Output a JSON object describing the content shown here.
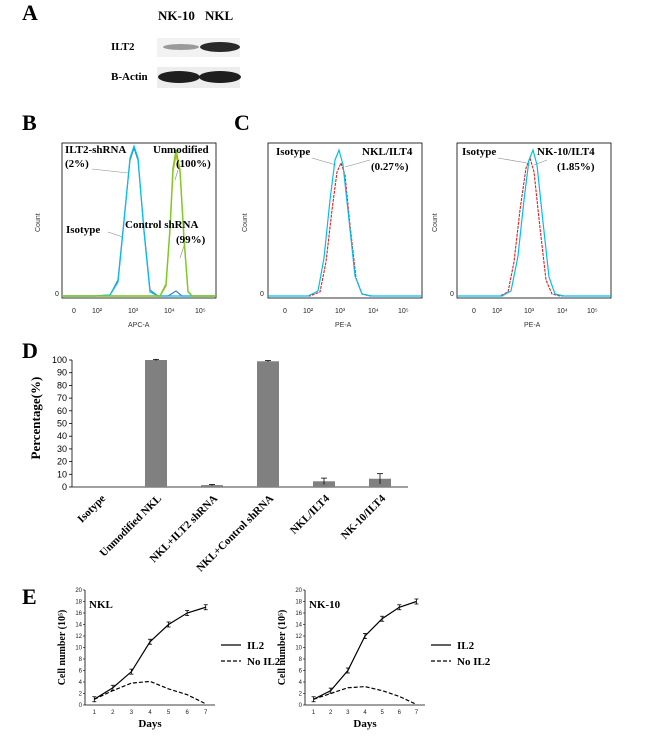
{
  "panel_a": {
    "letter": "A",
    "cols": [
      "NK-10",
      "NKL"
    ],
    "rows": [
      "ILT2",
      "B-Actin"
    ]
  },
  "panel_b": {
    "letter": "B",
    "xlabel": "APC-A",
    "ylabel": "Count",
    "annotations": {
      "shrna": "ILT2-shRNA",
      "shrna_pct": "(2%)",
      "unmod": "Unmodified",
      "unmod_pct": "(100%)",
      "isotype": "Isotype",
      "control": "Control shRNA",
      "control_pct": "(99%)"
    },
    "ticks": [
      "0",
      "10²",
      "10³",
      "10⁴",
      "10⁵"
    ],
    "zero": "0"
  },
  "panel_c": {
    "letter": "C",
    "left": {
      "xlabel": "PE-A",
      "ylabel": "Count",
      "isotype": "Isotype",
      "label": "NKL/ILT4",
      "pct": "(0.27%)"
    },
    "right": {
      "xlabel": "PE-A",
      "ylabel": "Count",
      "isotype": "Isotype",
      "label": "NK-10/ILT4",
      "pct": "(1.85%)"
    },
    "ticks": [
      "0",
      "10²",
      "10³",
      "10⁴",
      "10⁵"
    ],
    "zero": "0"
  },
  "chart_data": [
    {
      "type": "bar",
      "panel": "D",
      "ylabel": "Percentage(%)",
      "categories": [
        "Isotype",
        "Unmodified NKL",
        "NKL+ILT2 shRNA",
        "NKL+Control shRNA",
        "NKL/ILT4",
        "NK-10/ILT4"
      ],
      "values": [
        0,
        100,
        1.5,
        99,
        4.5,
        6.5
      ],
      "errors": [
        0,
        0.5,
        0.5,
        0.5,
        2.5,
        4
      ],
      "ylim": [
        0,
        100
      ],
      "yticks": [
        0,
        10,
        20,
        30,
        40,
        50,
        60,
        70,
        80,
        90,
        100
      ],
      "bar_color": "#808080"
    },
    {
      "type": "line",
      "panel": "E-left",
      "title": "NKL",
      "xlabel": "Days",
      "ylabel": "Cell number (10⁵)",
      "x": [
        1,
        2,
        3,
        4,
        5,
        6,
        7
      ],
      "ylim": [
        0,
        20
      ],
      "yticks": [
        0,
        2,
        4,
        6,
        8,
        10,
        12,
        14,
        16,
        18,
        20
      ],
      "series": [
        {
          "name": "IL2",
          "style": "solid",
          "values": [
            1,
            3,
            5.8,
            11,
            14,
            16,
            17
          ]
        },
        {
          "name": "No IL2",
          "style": "dashed",
          "values": [
            1,
            2.5,
            3.8,
            4.1,
            2.8,
            1.8,
            0.2
          ]
        }
      ]
    },
    {
      "type": "line",
      "panel": "E-right",
      "title": "NK-10",
      "xlabel": "Days",
      "ylabel": "Cell number (10⁵)",
      "x": [
        1,
        2,
        3,
        4,
        5,
        6,
        7
      ],
      "ylim": [
        0,
        20
      ],
      "yticks": [
        0,
        2,
        4,
        6,
        8,
        10,
        12,
        14,
        16,
        18,
        20
      ],
      "series": [
        {
          "name": "IL2",
          "style": "solid",
          "values": [
            1,
            2.5,
            6,
            12,
            15,
            17,
            18
          ]
        },
        {
          "name": "No IL2",
          "style": "dashed",
          "values": [
            1,
            2,
            3,
            3.2,
            2.5,
            1.5,
            0.1
          ]
        }
      ]
    }
  ],
  "panel_d_letter": "D",
  "panel_e_letter": "E"
}
